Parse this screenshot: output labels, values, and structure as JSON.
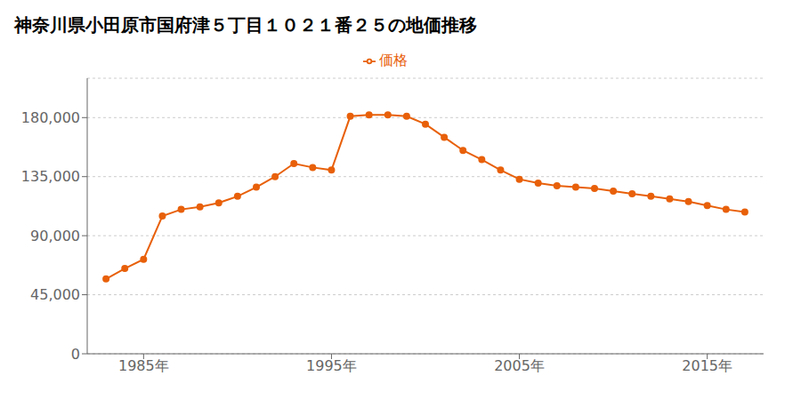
{
  "chart_data": {
    "type": "line",
    "title": "神奈川県小田原市国府津５丁目１０２１番２５の地価推移",
    "x": [
      1983,
      1984,
      1985,
      1986,
      1987,
      1988,
      1989,
      1990,
      1991,
      1992,
      1993,
      1994,
      1995,
      1996,
      1997,
      1998,
      1999,
      2000,
      2001,
      2002,
      2003,
      2004,
      2005,
      2006,
      2007,
      2008,
      2009,
      2010,
      2011,
      2012,
      2013,
      2014,
      2015,
      2016,
      2017
    ],
    "series": [
      {
        "name": "価格",
        "color": "#e8600a",
        "marker": "circle",
        "values": [
          57000,
          65000,
          72000,
          105000,
          110000,
          112000,
          115000,
          120000,
          127000,
          135000,
          145000,
          142000,
          140000,
          181000,
          182000,
          182000,
          181000,
          175000,
          165000,
          155000,
          148000,
          140000,
          133000,
          130000,
          128000,
          127000,
          126000,
          124000,
          122000,
          120000,
          118000,
          116000,
          113000,
          110000,
          108000
        ]
      }
    ],
    "xlim": [
      1982,
      2018
    ],
    "xticks": [
      {
        "value": 1985,
        "label": "1985年"
      },
      {
        "value": 1995,
        "label": "1995年"
      },
      {
        "value": 2005,
        "label": "2005年"
      },
      {
        "value": 2015,
        "label": "2015年"
      }
    ],
    "ylim": [
      0,
      210000
    ],
    "yticks": [
      0,
      {
        "value": 45000,
        "label": "45,000"
      },
      {
        "value": 90000,
        "label": "90,000"
      },
      {
        "value": 135000,
        "label": "135,000"
      },
      {
        "value": 180000,
        "label": "180,000"
      }
    ],
    "grid": true,
    "legend": "top"
  }
}
